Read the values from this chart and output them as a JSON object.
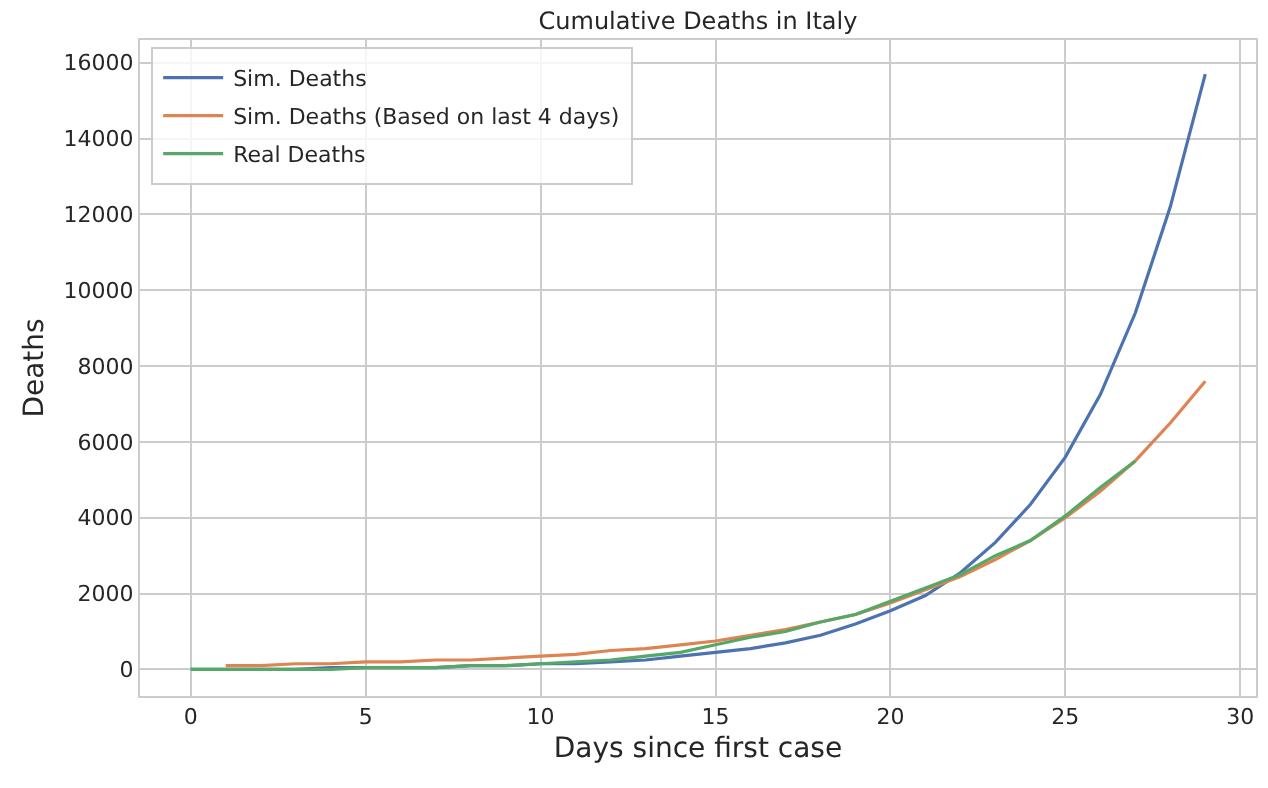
{
  "chart_data": {
    "type": "line",
    "title": "Cumulative Deaths in Italy",
    "xlabel": "Days since first case",
    "ylabel": "Deaths",
    "xlim": [
      -1.45,
      30.45
    ],
    "xticks": [
      0,
      5,
      10,
      15,
      20,
      25,
      30
    ],
    "ylim": [
      -700,
      16600
    ],
    "yticks": [
      0,
      2000,
      4000,
      6000,
      8000,
      10000,
      12000,
      14000,
      16000
    ],
    "grid": true,
    "legend": "top left",
    "line_style": "solid",
    "marker": "none",
    "series": [
      {
        "name": "Sim. Deaths",
        "color": "#4c72b0",
        "x": [
          0,
          1,
          2,
          3,
          4,
          5,
          6,
          7,
          8,
          9,
          10,
          11,
          12,
          13,
          14,
          15,
          16,
          17,
          18,
          19,
          20,
          21,
          22,
          23,
          24,
          25,
          26,
          27,
          28,
          29
        ],
        "values": [
          0,
          0,
          0,
          0,
          50,
          50,
          50,
          50,
          100,
          100,
          150,
          150,
          200,
          250,
          350,
          450,
          550,
          700,
          900,
          1200,
          1550,
          1950,
          2550,
          3350,
          4350,
          5600,
          7250,
          9400,
          12200,
          15700
        ]
      },
      {
        "name": "Sim. Deaths (Based on last 4 days)",
        "color": "#dd8452",
        "x": [
          1,
          2,
          3,
          4,
          5,
          6,
          7,
          8,
          9,
          10,
          11,
          12,
          13,
          14,
          15,
          16,
          17,
          18,
          19,
          20,
          21,
          22,
          23,
          24,
          25,
          26,
          27,
          28,
          29
        ],
        "values": [
          100,
          100,
          150,
          150,
          200,
          200,
          250,
          250,
          300,
          350,
          400,
          500,
          550,
          650,
          750,
          900,
          1050,
          1250,
          1450,
          1750,
          2100,
          2450,
          2900,
          3400,
          4000,
          4700,
          5500,
          6500,
          7600
        ]
      },
      {
        "name": "Real Deaths",
        "color": "#55a868",
        "x": [
          0,
          1,
          2,
          3,
          4,
          5,
          6,
          7,
          8,
          9,
          10,
          11,
          12,
          13,
          14,
          15,
          16,
          17,
          18,
          19,
          20,
          21,
          22,
          23,
          24,
          25,
          26,
          27
        ],
        "values": [
          0,
          0,
          0,
          0,
          0,
          50,
          50,
          50,
          100,
          100,
          150,
          200,
          250,
          350,
          450,
          650,
          850,
          1000,
          1250,
          1450,
          1800,
          2150,
          2500,
          3000,
          3400,
          4050,
          4800,
          5500
        ]
      }
    ]
  }
}
